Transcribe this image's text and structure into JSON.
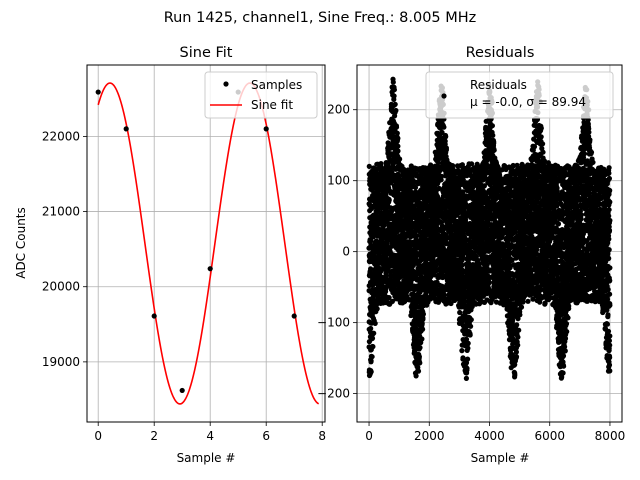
{
  "figure": {
    "suptitle": "Run 1425, channel1, Sine Freq.: 8.005 MHz"
  },
  "chart_data": [
    {
      "type": "line",
      "title": "Sine Fit",
      "xlabel": "Sample #",
      "ylabel": "ADC Counts",
      "xlim": [
        -0.4,
        8.1
      ],
      "ylim": [
        18200,
        22950
      ],
      "x_ticks": [
        0,
        2,
        4,
        6,
        8
      ],
      "y_ticks": [
        19000,
        20000,
        21000,
        22000
      ],
      "grid": true,
      "legend_position": "top-right",
      "series": [
        {
          "name": "Samples",
          "style": "markers",
          "color": "#000000",
          "x": [
            0,
            1,
            2,
            3,
            4,
            5,
            6,
            7
          ],
          "y": [
            22590,
            22100,
            19610,
            18620,
            20240,
            22590,
            22100,
            19610
          ]
        },
        {
          "name": "Sine fit",
          "style": "line",
          "color": "#ff0000",
          "offset": 20575,
          "amplitude": 2135,
          "period_samples": 4.997,
          "peak_at": 0.42,
          "x_range": [
            0,
            7.875
          ]
        }
      ]
    },
    {
      "type": "scatter",
      "title": "Residuals",
      "xlabel": "Sample #",
      "ylabel": "",
      "xlim": [
        -400,
        8400
      ],
      "ylim": [
        -240,
        263
      ],
      "x_ticks": [
        0,
        2000,
        4000,
        6000,
        8000
      ],
      "y_ticks": [
        -200,
        -100,
        0,
        100,
        200
      ],
      "grid": true,
      "legend_position": "top-right",
      "color": "#000000",
      "n_points": 8000,
      "envelope_period_samples": 1600,
      "envelope_peak_at": 800,
      "envelope_band": {
        "max_low": 120,
        "max_high": 240,
        "min_low": -70,
        "min_high": -180
      },
      "legend_entries": [
        "Residuals",
        "μ = -0.0, σ = 89.94"
      ],
      "series": [
        {
          "name": "Residuals",
          "mean": -0.0,
          "std": 89.94
        }
      ]
    }
  ]
}
